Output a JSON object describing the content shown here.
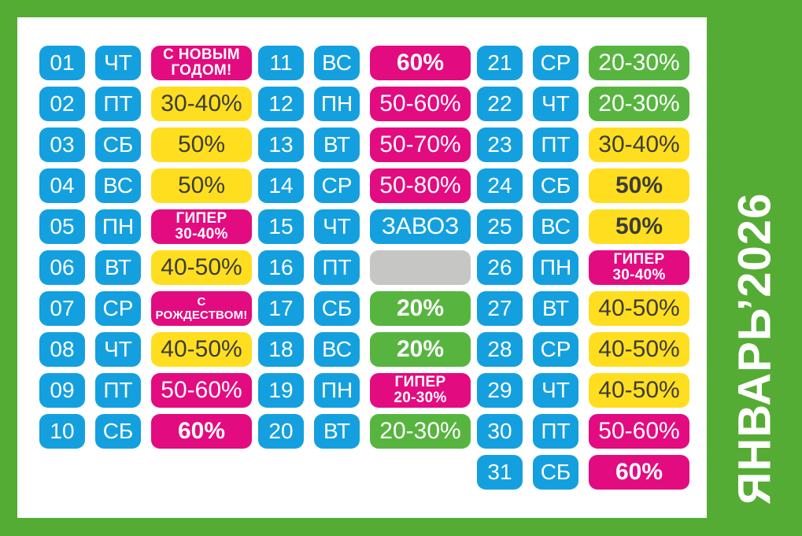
{
  "sidebar": {
    "title": "ЯНВАРЬ’2026"
  },
  "colors": {
    "frame_green": "#55AC34",
    "blue": "#14A0DE",
    "pink": "#E30B80",
    "yellow": "#FFDE1F",
    "green": "#57B53F",
    "gray": "#C6C6C5",
    "dark_text": "#3C3C3B",
    "white_text": "#FFFFFF"
  },
  "calendar": {
    "columns": [
      {
        "rows": [
          {
            "num": "01",
            "dow": "ЧТ",
            "lines": [
              "С НОВЫМ",
              "ГОДОМ!"
            ],
            "style": "pink",
            "weight": "bold",
            "size": "sm"
          },
          {
            "num": "02",
            "dow": "ПТ",
            "label": "30-40%",
            "style": "yellow",
            "weight": "regular",
            "size": "lg"
          },
          {
            "num": "03",
            "dow": "СБ",
            "label": "50%",
            "style": "yellow",
            "weight": "regular",
            "size": "lg"
          },
          {
            "num": "04",
            "dow": "ВС",
            "label": "50%",
            "style": "yellow",
            "weight": "regular",
            "size": "lg"
          },
          {
            "num": "05",
            "dow": "ПН",
            "lines": [
              "ГИПЕР",
              "30-40%"
            ],
            "style": "pink",
            "weight": "bold",
            "size": "sm"
          },
          {
            "num": "06",
            "dow": "ВТ",
            "label": "40-50%",
            "style": "yellow",
            "weight": "regular",
            "size": "lg"
          },
          {
            "num": "07",
            "dow": "СР",
            "lines": [
              "С",
              "РОЖДЕСТВОМ!"
            ],
            "style": "pink",
            "weight": "bold",
            "size": "xs"
          },
          {
            "num": "08",
            "dow": "ЧТ",
            "label": "40-50%",
            "style": "yellow",
            "weight": "regular",
            "size": "lg"
          },
          {
            "num": "09",
            "dow": "ПТ",
            "label": "50-60%",
            "style": "pink",
            "weight": "regular",
            "size": "lg"
          },
          {
            "num": "10",
            "dow": "СБ",
            "label": "60%",
            "style": "pink",
            "weight": "bold",
            "size": "lg"
          }
        ]
      },
      {
        "rows": [
          {
            "num": "11",
            "dow": "ВС",
            "label": "60%",
            "style": "pink",
            "weight": "bold",
            "size": "lg"
          },
          {
            "num": "12",
            "dow": "ПН",
            "label": "50-60%",
            "style": "pink",
            "weight": "regular",
            "size": "lg"
          },
          {
            "num": "13",
            "dow": "ВТ",
            "label": "50-70%",
            "style": "pink",
            "weight": "regular",
            "size": "lg"
          },
          {
            "num": "14",
            "dow": "СР",
            "label": "50-80%",
            "style": "pink",
            "weight": "regular",
            "size": "lg"
          },
          {
            "num": "15",
            "dow": "ЧТ",
            "label": "ЗАВОЗ",
            "style": "blue",
            "weight": "regular",
            "size": "lg"
          },
          {
            "num": "16",
            "dow": "ПТ",
            "label": "",
            "style": "gray",
            "weight": "regular",
            "size": "lg"
          },
          {
            "num": "17",
            "dow": "СБ",
            "label": "20%",
            "style": "green",
            "weight": "bold",
            "size": "lg"
          },
          {
            "num": "18",
            "dow": "ВС",
            "label": "20%",
            "style": "green",
            "weight": "bold",
            "size": "lg"
          },
          {
            "num": "19",
            "dow": "ПН",
            "lines": [
              "ГИПЕР",
              "20-30%"
            ],
            "style": "pink",
            "weight": "bold",
            "size": "sm"
          },
          {
            "num": "20",
            "dow": "ВТ",
            "label": "20-30%",
            "style": "green",
            "weight": "regular",
            "size": "lg"
          }
        ]
      },
      {
        "rows": [
          {
            "num": "21",
            "dow": "СР",
            "label": "20-30%",
            "style": "green",
            "weight": "regular",
            "size": "lg"
          },
          {
            "num": "22",
            "dow": "ЧТ",
            "label": "20-30%",
            "style": "green",
            "weight": "regular",
            "size": "lg"
          },
          {
            "num": "23",
            "dow": "ПТ",
            "label": "30-40%",
            "style": "yellow",
            "weight": "regular",
            "size": "lg"
          },
          {
            "num": "24",
            "dow": "СБ",
            "label": "50%",
            "style": "yellow",
            "weight": "bold",
            "size": "lg"
          },
          {
            "num": "25",
            "dow": "ВС",
            "label": "50%",
            "style": "yellow",
            "weight": "bold",
            "size": "lg"
          },
          {
            "num": "26",
            "dow": "ПН",
            "lines": [
              "ГИПЕР",
              "30-40%"
            ],
            "style": "pink",
            "weight": "bold",
            "size": "sm"
          },
          {
            "num": "27",
            "dow": "ВТ",
            "label": "40-50%",
            "style": "yellow",
            "weight": "regular",
            "size": "lg"
          },
          {
            "num": "28",
            "dow": "СР",
            "label": "40-50%",
            "style": "yellow",
            "weight": "regular",
            "size": "lg"
          },
          {
            "num": "29",
            "dow": "ЧТ",
            "label": "40-50%",
            "style": "yellow",
            "weight": "regular",
            "size": "lg"
          },
          {
            "num": "30",
            "dow": "ПТ",
            "label": "50-60%",
            "style": "pink",
            "weight": "regular",
            "size": "lg"
          },
          {
            "num": "31",
            "dow": "СБ",
            "label": "60%",
            "style": "pink",
            "weight": "bold",
            "size": "lg"
          }
        ]
      }
    ]
  }
}
